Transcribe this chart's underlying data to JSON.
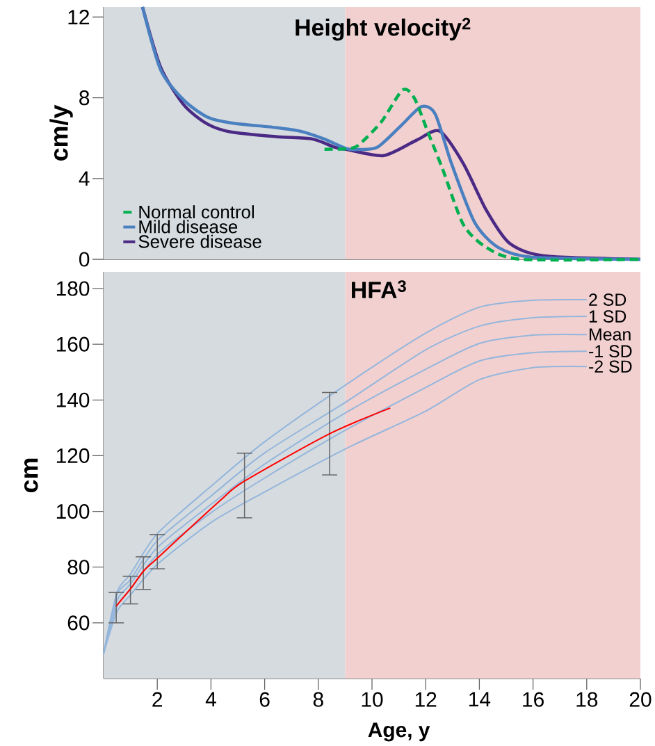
{
  "chart_data": [
    {
      "type": "line",
      "title": "Height velocity$^{2}$",
      "ylabel": "cm/y",
      "xlim": [
        0,
        20
      ],
      "ylim": [
        0,
        12.5
      ],
      "yticks": [
        0,
        4,
        8,
        12
      ],
      "tick_labels": "y",
      "legend": "bottom left",
      "bands": [
        {
          "axis": "x",
          "from": 0,
          "to": 9,
          "color": "#d6dbdf"
        },
        {
          "axis": "x",
          "from": 9,
          "to": 20,
          "color": "#f2d0d0"
        }
      ],
      "series": [
        {
          "name": "Normal control",
          "color": "#00b050",
          "line_style": "dashed",
          "x": [
            8.23,
            9.06,
            9.5,
            10.36,
            11.14,
            11.58,
            12.1,
            12.62,
            13.4,
            14.26,
            15.56,
            20
          ],
          "values": [
            5.45,
            5.48,
            5.66,
            6.83,
            8.39,
            7.98,
            6.24,
            4.51,
            1.73,
            0.59,
            0,
            0
          ]
        },
        {
          "name": "Mild disease",
          "color": "#4a80c0",
          "x": [
            1.45,
            2.13,
            3.0,
            3.87,
            4.73,
            6.47,
            7.32,
            8.2,
            9.06,
            9.5,
            10.2,
            11.06,
            11.84,
            12.36,
            12.96,
            13.82,
            14.7,
            16.0,
            20
          ],
          "values": [
            12.5,
            9.37,
            7.87,
            7.04,
            6.76,
            6.52,
            6.35,
            5.97,
            5.48,
            5.44,
            5.55,
            6.59,
            7.56,
            7.18,
            4.75,
            1.84,
            0.59,
            0.1,
            0
          ]
        },
        {
          "name": "Severe disease",
          "color": "#4b2a85",
          "x": [
            1.45,
            2.13,
            3.0,
            3.87,
            4.73,
            6.47,
            7.77,
            8.62,
            9.06,
            10.44,
            11.66,
            12.52,
            13.4,
            14.26,
            15.12,
            16.42,
            20
          ],
          "values": [
            12.5,
            9.5,
            7.63,
            6.7,
            6.31,
            6.07,
            5.96,
            5.55,
            5.44,
            5.14,
            5.9,
            6.35,
            4.75,
            2.43,
            0.8,
            0.17,
            0
          ]
        }
      ]
    },
    {
      "type": "line",
      "title": "HFA$^{3}$",
      "xlabel": "Age, y",
      "ylabel": "cm",
      "xlim": [
        0,
        20
      ],
      "xticks": [
        2,
        4,
        6,
        8,
        10,
        12,
        14,
        16,
        18,
        20
      ],
      "ylim": [
        40,
        186
      ],
      "yticks": [
        60,
        80,
        100,
        120,
        140,
        160,
        180
      ],
      "bands": [
        {
          "axis": "x",
          "from": 0,
          "to": 9,
          "color": "#d6dbdf"
        },
        {
          "axis": "x",
          "from": 9,
          "to": 20,
          "color": "#f2d0d0"
        }
      ],
      "series": [
        {
          "name": "2 SD",
          "color": "#94b6dc",
          "x": [
            0,
            0.5,
            1,
            2,
            4,
            6,
            9,
            12,
            14,
            16,
            18
          ],
          "values": [
            49,
            71,
            77.5,
            92,
            109,
            125,
            145.3,
            164,
            173.3,
            175.8,
            176
          ]
        },
        {
          "name": "1 SD",
          "color": "#94b6dc",
          "x": [
            0,
            0.5,
            1,
            2,
            4,
            6,
            9,
            12,
            14,
            16,
            18
          ],
          "values": [
            49,
            70,
            75.5,
            89.5,
            105.5,
            121,
            139.1,
            158,
            166.5,
            169.5,
            170
          ]
        },
        {
          "name": "Mean",
          "color": "#94b6dc",
          "x": [
            0,
            0.5,
            1,
            2,
            4,
            6,
            9,
            12,
            14,
            16,
            18
          ],
          "values": [
            49,
            68,
            74,
            87,
            102.5,
            117,
            135.3,
            151,
            160.3,
            163.3,
            163.5
          ]
        },
        {
          "name": "-1 SD",
          "color": "#94b6dc",
          "x": [
            0,
            0.5,
            1,
            2,
            4,
            6,
            9,
            12,
            14,
            16,
            18
          ],
          "values": [
            49,
            66,
            72,
            84.5,
            99.5,
            112,
            129.1,
            144.5,
            154,
            157,
            157.5
          ]
        },
        {
          "name": "-2 SD",
          "color": "#94b6dc",
          "x": [
            0,
            0.5,
            1,
            2,
            4,
            6,
            9,
            12,
            14,
            16,
            18
          ],
          "values": [
            49,
            64,
            70,
            81,
            96,
            107,
            122.4,
            136,
            147.3,
            151.6,
            152
          ]
        },
        {
          "color": "#ff0000",
          "x": [
            0.47,
            1,
            1.48,
            2,
            4.34,
            5.25,
            8.42,
            10.68
          ],
          "values": [
            66,
            72.2,
            78.5,
            83.2,
            103.9,
            110.9,
            127.9,
            137.1
          ],
          "errors": [
            [
              60,
              70.9
            ],
            [
              66.8,
              76.7
            ],
            [
              72,
              83.7
            ],
            [
              79.4,
              91.7
            ],
            null,
            [
              97.7,
              120.9
            ],
            [
              113.1,
              142.7
            ],
            null
          ]
        }
      ]
    }
  ]
}
